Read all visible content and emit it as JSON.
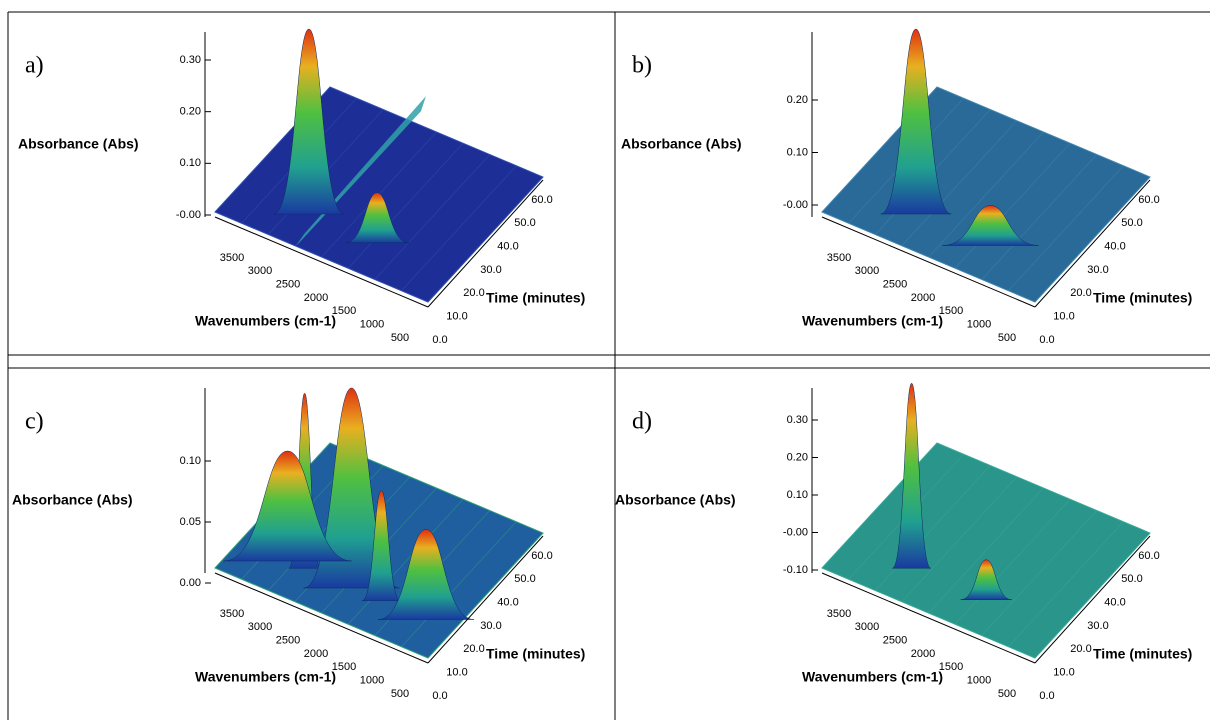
{
  "panels": [
    {
      "label": "a)",
      "z_title": "Absorbance (Abs)",
      "z_ticks": [
        "0.30",
        "0.20",
        "0.10",
        "-0.00"
      ],
      "x_title": "Wavenumbers (cm-1)",
      "x_ticks": [
        "3500",
        "3000",
        "2500",
        "2000",
        "1500",
        "1000",
        "500"
      ],
      "y_title": "Time (minutes)",
      "y_ticks": [
        "0.0",
        "10.0",
        "20.0",
        "30.0",
        "40.0",
        "50.0",
        "60.0"
      ]
    },
    {
      "label": "b)",
      "z_title": "Absorbance (Abs)",
      "z_ticks": [
        "0.20",
        "0.10",
        "-0.00"
      ],
      "x_title": "Wavenumbers (cm-1)",
      "x_ticks": [
        "3500",
        "3000",
        "2500",
        "2000",
        "1500",
        "1000",
        "500"
      ],
      "y_title": "Time (minutes)",
      "y_ticks": [
        "0.0",
        "10.0",
        "20.0",
        "30.0",
        "40.0",
        "50.0",
        "60.0"
      ]
    },
    {
      "label": "c)",
      "z_title": "Absorbance (Abs)",
      "z_ticks": [
        "0.10",
        "0.05",
        "0.00"
      ],
      "x_title": "Wavenumbers (cm-1)",
      "x_ticks": [
        "3500",
        "3000",
        "2500",
        "2000",
        "1500",
        "1000",
        "500"
      ],
      "y_title": "Time (minutes)",
      "y_ticks": [
        "0.0",
        "10.0",
        "20.0",
        "30.0",
        "40.0",
        "50.0",
        "60.0"
      ]
    },
    {
      "label": "d)",
      "z_title": "Absorbance (Abs)",
      "z_ticks": [
        "0.30",
        "0.20",
        "0.10",
        "-0.00",
        "-0.10"
      ],
      "x_title": "Wavenumbers (cm-1)",
      "x_ticks": [
        "3500",
        "3000",
        "2500",
        "2000",
        "1500",
        "1000",
        "500"
      ],
      "y_title": "Time (minutes)",
      "y_ticks": [
        "0.0",
        "10.0",
        "20.0",
        "30.0",
        "40.0",
        "50.0",
        "60.0"
      ]
    }
  ]
}
